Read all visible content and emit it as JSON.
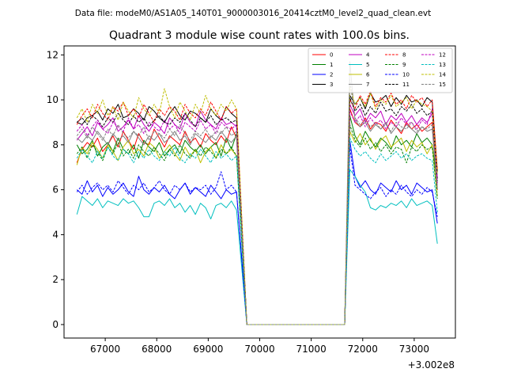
{
  "header": {
    "data_file": "Data file: modeM0/AS1A05_140T01_9000003016_20414cztM0_level2_quad_clean.evt"
  },
  "chart_data": {
    "type": "line",
    "title": "Quadrant 3 module wise count rates with 100.0s bins.",
    "xlabel": "",
    "ylabel": "",
    "x_offset_label": "+3.002e8",
    "xlim": [
      66200,
      73800
    ],
    "ylim": [
      -0.6,
      12.4
    ],
    "x_ticks": [
      67000,
      68000,
      69000,
      70000,
      71000,
      72000,
      73000
    ],
    "x_tick_labels": [
      "67000",
      "68000",
      "69000",
      "70000",
      "71000",
      "72000",
      "73000"
    ],
    "y_ticks": [
      0,
      2,
      4,
      6,
      8,
      10,
      12
    ],
    "y_tick_labels": [
      "0",
      "2",
      "4",
      "6",
      "8",
      "10",
      "12"
    ],
    "legend_position": "upper-right",
    "segments": [
      {
        "x_start": 66450,
        "x_end": 69550,
        "step": 100
      },
      {
        "x_start": 69750,
        "x_end": 71650,
        "step": 100
      },
      {
        "x_start": 71750,
        "x_end": 73450,
        "step": 100
      }
    ],
    "series": [
      {
        "name": "0",
        "color": "#ff0000",
        "dashed": false,
        "seg1": [
          7.2,
          7.8,
          8.1,
          7.9,
          8.3,
          7.7,
          8.0,
          8.4,
          7.9,
          8.6,
          8.2,
          7.8,
          8.5,
          8.1,
          8.0,
          8.7,
          8.3,
          7.9,
          8.4,
          8.2,
          8.0,
          8.6,
          8.1,
          8.3,
          7.9,
          8.5,
          8.2,
          8.0,
          8.4,
          8.1,
          8.8,
          8.3
        ],
        "seg3": [
          9.6,
          9.0,
          8.8,
          9.2,
          8.7,
          9.0,
          8.9,
          8.6,
          9.1,
          8.8,
          8.5,
          9.0,
          8.7,
          8.9,
          8.6,
          8.8,
          9.0,
          6.0
        ]
      },
      {
        "name": "1",
        "color": "#008000",
        "dashed": false,
        "seg1": [
          8.0,
          7.6,
          7.8,
          8.2,
          7.5,
          7.9,
          8.1,
          7.7,
          8.3,
          7.8,
          7.6,
          8.0,
          7.4,
          8.2,
          7.9,
          7.7,
          8.1,
          7.5,
          7.8,
          8.0,
          7.6,
          8.2,
          7.9,
          7.7,
          8.0,
          7.6,
          7.9,
          8.1,
          7.5,
          8.3,
          7.8,
          8.5
        ],
        "seg3": [
          9.3,
          8.4,
          8.0,
          8.6,
          8.2,
          7.9,
          8.3,
          8.1,
          7.8,
          8.4,
          8.0,
          8.2,
          7.9,
          8.5,
          8.1,
          8.3,
          8.0,
          6.3
        ]
      },
      {
        "name": "2",
        "color": "#0000ff",
        "dashed": false,
        "seg1": [
          6.0,
          5.8,
          6.4,
          5.9,
          6.2,
          5.7,
          6.1,
          5.8,
          6.0,
          6.3,
          5.9,
          5.7,
          6.6,
          6.0,
          5.8,
          6.1,
          5.9,
          6.2,
          5.8,
          5.6,
          6.0,
          6.3,
          5.8,
          6.1,
          5.9,
          5.7,
          6.2,
          5.9,
          5.6,
          6.0,
          5.8,
          5.9
        ],
        "seg3": [
          8.2,
          6.6,
          6.1,
          6.4,
          6.0,
          5.8,
          6.3,
          6.1,
          5.9,
          6.4,
          6.0,
          6.2,
          5.8,
          6.3,
          6.1,
          5.9,
          6.0,
          4.5
        ]
      },
      {
        "name": "3",
        "color": "#000000",
        "dashed": false,
        "seg1": [
          9.0,
          8.9,
          9.2,
          9.3,
          9.5,
          9.1,
          9.6,
          9.4,
          9.8,
          9.2,
          9.3,
          9.6,
          9.4,
          9.1,
          9.7,
          9.5,
          9.2,
          9.0,
          9.4,
          9.7,
          9.3,
          9.1,
          9.5,
          9.4,
          9.2,
          9.0,
          9.6,
          9.3,
          9.1,
          9.7,
          9.4,
          9.2
        ],
        "seg3": [
          10.2,
          9.8,
          10.1,
          9.6,
          10.3,
          9.9,
          10.0,
          10.2,
          9.7,
          10.1,
          9.8,
          10.2,
          9.9,
          10.0,
          9.7,
          10.1,
          9.9,
          6.8
        ]
      },
      {
        "name": "4",
        "color": "#c000c0",
        "dashed": false,
        "seg1": [
          8.2,
          8.5,
          8.8,
          8.4,
          9.0,
          8.7,
          8.9,
          9.2,
          8.6,
          8.8,
          9.1,
          8.7,
          9.3,
          8.9,
          8.6,
          9.0,
          8.8,
          8.5,
          9.2,
          8.9,
          8.7,
          9.4,
          9.0,
          8.8,
          9.5,
          9.1,
          8.9,
          8.7,
          9.2,
          8.9,
          9.0,
          8.8
        ],
        "seg3": [
          9.8,
          9.3,
          9.6,
          9.0,
          9.4,
          9.2,
          9.5,
          8.9,
          9.3,
          9.1,
          9.4,
          9.0,
          9.3,
          8.9,
          9.2,
          9.0,
          9.4,
          6.5
        ]
      },
      {
        "name": "5",
        "color": "#00bfbf",
        "dashed": false,
        "seg1": [
          4.9,
          5.7,
          5.5,
          5.3,
          5.6,
          5.2,
          5.5,
          5.4,
          5.3,
          5.6,
          5.4,
          5.5,
          5.2,
          4.8,
          4.8,
          5.4,
          5.5,
          5.3,
          5.6,
          5.2,
          5.4,
          5.0,
          5.3,
          4.9,
          5.4,
          5.2,
          4.7,
          5.3,
          5.4,
          5.2,
          5.5,
          5.1
        ],
        "seg3": [
          6.9,
          6.6,
          6.2,
          5.9,
          5.2,
          5.1,
          5.3,
          5.2,
          5.4,
          5.3,
          5.5,
          5.2,
          5.6,
          5.3,
          5.4,
          5.5,
          5.3,
          3.6
        ]
      },
      {
        "name": "6",
        "color": "#bfbf00",
        "dashed": false,
        "seg1": [
          7.1,
          7.9,
          7.6,
          8.1,
          7.8,
          7.4,
          8.0,
          7.7,
          7.3,
          7.9,
          8.2,
          7.6,
          7.8,
          7.5,
          8.1,
          7.9,
          7.4,
          7.7,
          8.0,
          7.6,
          7.3,
          7.9,
          7.5,
          7.8,
          7.2,
          7.7,
          7.9,
          7.4,
          8.0,
          7.6,
          7.8,
          7.5
        ],
        "seg3": [
          8.6,
          8.1,
          8.5,
          8.0,
          8.3,
          7.8,
          8.2,
          8.4,
          7.9,
          8.1,
          8.3,
          7.7,
          8.2,
          7.9,
          8.1,
          7.6,
          8.0,
          5.7
        ]
      },
      {
        "name": "7",
        "color": "#808080",
        "dashed": false,
        "seg1": [
          8.3,
          8.1,
          8.4,
          8.2,
          8.6,
          8.3,
          8.0,
          8.5,
          8.2,
          8.4,
          8.1,
          8.6,
          8.3,
          8.0,
          8.4,
          8.2,
          8.5,
          8.1,
          8.3,
          8.6,
          8.2,
          8.4,
          8.0,
          8.5,
          8.3,
          8.1,
          8.4,
          8.2,
          8.6,
          8.3,
          8.1,
          8.4
        ],
        "seg3": [
          11.7,
          9.1,
          8.8,
          9.0,
          8.6,
          8.9,
          8.7,
          9.0,
          8.5,
          8.8,
          8.6,
          8.9,
          8.7,
          8.5,
          8.8,
          8.6,
          8.7,
          6.1
        ]
      },
      {
        "name": "8",
        "color": "#ff0000",
        "dashed": true,
        "seg1": [
          8.9,
          9.3,
          9.6,
          9.2,
          9.8,
          9.4,
          9.1,
          9.7,
          9.5,
          9.9,
          9.3,
          9.6,
          9.2,
          9.8,
          9.4,
          9.0,
          9.6,
          9.3,
          9.7,
          9.5,
          9.1,
          9.8,
          9.4,
          9.2,
          9.6,
          9.3,
          9.9,
          9.5,
          9.1,
          9.7,
          9.4,
          9.6
        ],
        "seg3": [
          10.0,
          9.6,
          10.2,
          9.8,
          10.4,
          9.7,
          10.1,
          9.9,
          10.3,
          9.8,
          10.0,
          9.6,
          10.2,
          9.9,
          10.1,
          9.7,
          10.0,
          6.9
        ]
      },
      {
        "name": "9",
        "color": "#008000",
        "dashed": true,
        "seg1": [
          7.6,
          7.9,
          7.4,
          8.0,
          7.7,
          7.3,
          7.9,
          7.6,
          8.1,
          7.5,
          7.8,
          7.4,
          8.0,
          7.7,
          7.5,
          7.9,
          7.6,
          7.3,
          7.8,
          7.5,
          8.0,
          7.6,
          7.4,
          7.8,
          7.5,
          7.9,
          7.7,
          7.4,
          7.8,
          7.6,
          7.9,
          7.5
        ],
        "seg3": [
          8.9,
          8.2,
          7.9,
          8.3,
          7.8,
          8.1,
          7.7,
          8.0,
          7.6,
          7.9,
          7.8,
          7.2,
          7.9,
          7.7,
          8.0,
          7.8,
          7.9,
          5.6
        ]
      },
      {
        "name": "10",
        "color": "#0000ff",
        "dashed": true,
        "seg1": [
          5.9,
          6.2,
          5.8,
          6.1,
          6.3,
          6.0,
          6.2,
          5.9,
          6.4,
          6.1,
          5.8,
          6.2,
          6.0,
          6.3,
          5.9,
          6.1,
          6.4,
          6.0,
          5.8,
          6.2,
          6.0,
          6.3,
          5.9,
          6.1,
          6.0,
          6.2,
          5.8,
          6.1,
          6.8,
          6.0,
          6.2,
          5.9
        ],
        "seg3": [
          7.9,
          6.2,
          6.0,
          5.8,
          5.6,
          5.9,
          6.1,
          5.7,
          6.0,
          5.8,
          6.2,
          5.9,
          5.7,
          6.0,
          5.8,
          6.1,
          5.9,
          4.8
        ]
      },
      {
        "name": "11",
        "color": "#000000",
        "dashed": true,
        "seg1": [
          9.0,
          9.2,
          8.9,
          9.3,
          9.1,
          8.8,
          9.2,
          9.0,
          9.4,
          9.1,
          8.9,
          9.3,
          9.0,
          9.2,
          8.8,
          9.1,
          9.3,
          9.0,
          8.9,
          9.2,
          9.0,
          9.4,
          9.1,
          8.8,
          9.2,
          9.0,
          9.3,
          8.9,
          9.1,
          9.2,
          9.0,
          9.1
        ],
        "seg3": [
          10.1,
          9.5,
          9.8,
          9.3,
          9.7,
          9.4,
          9.9,
          9.5,
          9.6,
          9.3,
          9.7,
          9.5,
          9.8,
          9.4,
          9.6,
          9.3,
          9.5,
          6.4
        ]
      },
      {
        "name": "12",
        "color": "#c000c0",
        "dashed": true,
        "seg1": [
          8.6,
          8.9,
          8.4,
          8.8,
          9.1,
          8.7,
          8.5,
          9.0,
          8.8,
          8.6,
          9.2,
          8.7,
          8.9,
          8.5,
          9.0,
          8.8,
          8.6,
          9.1,
          8.7,
          8.9,
          8.5,
          9.0,
          8.8,
          8.6,
          9.1,
          8.7,
          8.9,
          8.5,
          9.0,
          8.8,
          8.7,
          8.9
        ],
        "seg3": [
          9.5,
          9.0,
          9.3,
          8.8,
          9.2,
          8.9,
          9.1,
          8.7,
          9.0,
          8.8,
          9.2,
          8.9,
          9.0,
          8.7,
          9.1,
          8.9,
          9.6,
          6.2
        ]
      },
      {
        "name": "13",
        "color": "#00bfbf",
        "dashed": true,
        "seg1": [
          7.4,
          7.8,
          7.5,
          7.2,
          7.7,
          7.4,
          7.9,
          7.5,
          7.3,
          7.8,
          7.6,
          7.2,
          7.7,
          7.4,
          7.8,
          7.5,
          7.3,
          7.7,
          7.5,
          7.9,
          7.4,
          7.2,
          7.6,
          7.4,
          7.8,
          7.5,
          7.2,
          7.7,
          7.4,
          7.6,
          7.3,
          7.5
        ],
        "seg3": [
          8.3,
          7.8,
          7.5,
          7.7,
          7.4,
          7.2,
          7.6,
          7.3,
          7.5,
          7.7,
          7.4,
          7.6,
          7.3,
          7.5,
          7.6,
          7.4,
          7.3,
          5.0
        ]
      },
      {
        "name": "14",
        "color": "#bfbf00",
        "dashed": true,
        "seg1": [
          9.2,
          9.6,
          9.0,
          9.8,
          9.4,
          10.0,
          9.3,
          9.7,
          9.1,
          9.9,
          9.5,
          9.2,
          10.1,
          9.6,
          9.3,
          9.8,
          9.4,
          10.5,
          9.7,
          9.2,
          9.9,
          9.5,
          9.1,
          9.8,
          9.4,
          10.2,
          9.6,
          9.3,
          9.8,
          9.5,
          10.0,
          9.6
        ],
        "seg3": [
          10.6,
          9.8,
          10.1,
          9.7,
          10.3,
          9.6,
          10.0,
          9.8,
          10.2,
          9.7,
          9.9,
          10.1,
          9.6,
          10.0,
          9.8,
          9.7,
          9.5,
          6.7
        ]
      },
      {
        "name": "15",
        "color": "#808080",
        "dashed": true,
        "seg1": [
          8.4,
          8.7,
          8.3,
          8.8,
          8.5,
          8.2,
          8.7,
          8.4,
          8.9,
          8.5,
          8.3,
          8.6,
          8.4,
          8.8,
          8.2,
          8.6,
          8.5,
          8.3,
          8.7,
          8.4,
          8.9,
          8.5,
          8.2,
          8.6,
          8.4,
          8.7,
          8.3,
          8.6,
          8.5,
          8.8,
          8.4,
          8.6
        ],
        "seg3": [
          10.9,
          9.2,
          8.9,
          9.1,
          8.8,
          9.0,
          8.7,
          8.9,
          8.6,
          9.0,
          8.8,
          8.7,
          9.0,
          8.6,
          8.8,
          8.7,
          8.9,
          6.0
        ]
      }
    ]
  }
}
